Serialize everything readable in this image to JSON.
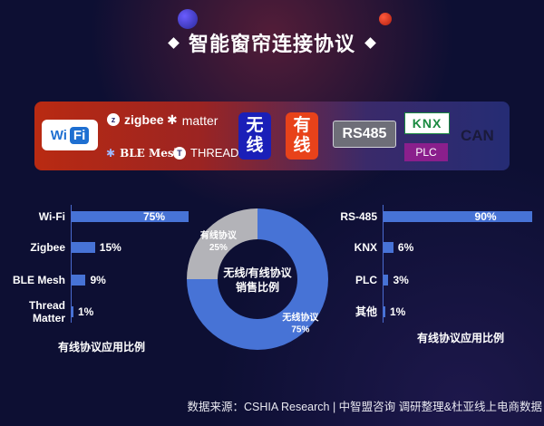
{
  "title": "智能窗帘连接协议",
  "banner": {
    "wifi": {
      "wi": "Wi",
      "fi": "Fi"
    },
    "zigbee": "zigbee",
    "matter": "matter",
    "ble_mesh": "BLE Mesh",
    "thread": "THREAD",
    "wireless_label": [
      "无",
      "线"
    ],
    "wired_label": [
      "有",
      "线"
    ],
    "rs485": "RS485",
    "knx": "KNX",
    "plc": "PLC",
    "can": "CAN"
  },
  "chart_data": [
    {
      "type": "bar",
      "orientation": "horizontal",
      "subtitle": "有线协议应用比例",
      "categories": [
        "Wi-Fi",
        "Zigbee",
        "BLE Mesh",
        "Thread\nMatter"
      ],
      "values": [
        75,
        15,
        9,
        1
      ],
      "value_labels": [
        "75%",
        "15%",
        "9%",
        "1%"
      ],
      "xlim": [
        0,
        100
      ],
      "color": "#4773d6"
    },
    {
      "type": "pie",
      "style": "donut",
      "center_label": [
        "无线/有线协议",
        "销售比例"
      ],
      "slices": [
        {
          "name": "有线协议",
          "value": 25,
          "label": "25%",
          "color": "#b3b3b8"
        },
        {
          "name": "无线协议",
          "value": 75,
          "label": "75%",
          "color": "#4773d6"
        }
      ]
    },
    {
      "type": "bar",
      "orientation": "horizontal",
      "subtitle": "有线协议应用比例",
      "categories": [
        "RS-485",
        "KNX",
        "PLC",
        "其他"
      ],
      "values": [
        90,
        6,
        3,
        1
      ],
      "value_labels": [
        "90%",
        "6%",
        "3%",
        "1%"
      ],
      "xlim": [
        0,
        100
      ],
      "color": "#4773d6"
    }
  ],
  "source": "数据来源：CSHIA Research | 中智盟咨询 调研整理&杜亚线上电商数据"
}
